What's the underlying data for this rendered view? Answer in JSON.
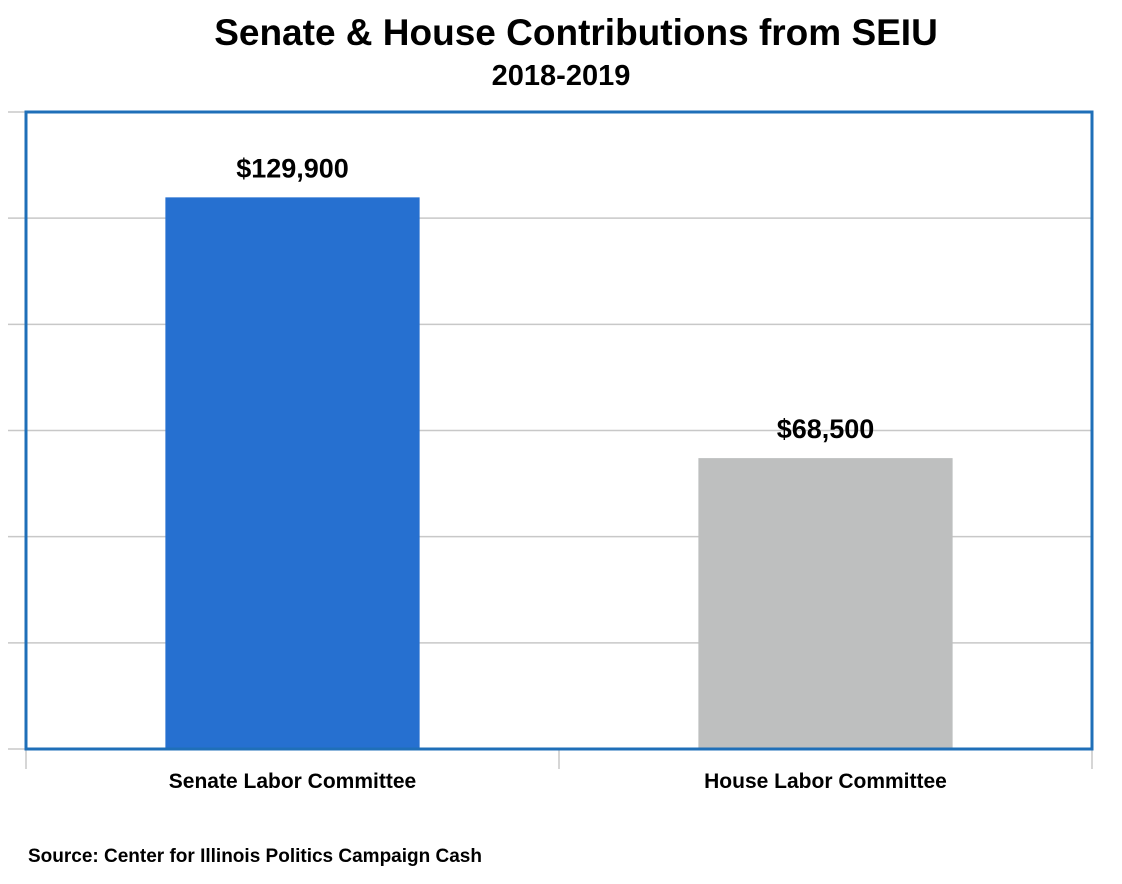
{
  "chart_data": {
    "type": "bar",
    "title": "Senate & House Contributions from SEIU",
    "subtitle": "2018-2019",
    "categories": [
      "Senate Labor Committee",
      "House Labor Committee"
    ],
    "values": [
      129900,
      68500
    ],
    "data_labels": [
      "$129,900",
      "$68,500"
    ],
    "colors": [
      "#2670D0",
      "#BEBFBF"
    ],
    "ylim": [
      0,
      150000
    ],
    "grid": true,
    "legend": "none",
    "plot_border_color": "#1F6FB8"
  },
  "source": "Source: Center for Illinois Politics Campaign Cash"
}
